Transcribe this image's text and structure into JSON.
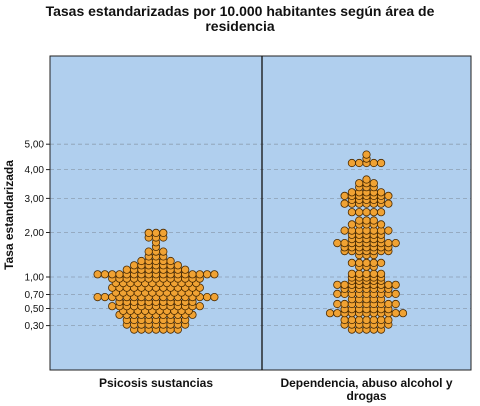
{
  "chart_data": {
    "type": "scatter",
    "subtype": "dot-plot",
    "title_lines": [
      "Tasas estandarizadas por 10.000 habitantes según área de",
      "residencia"
    ],
    "ylabel": "Tasa estandarizada",
    "y_scale": "sqrt",
    "ylim": [
      0.2,
      5.5
    ],
    "y_ticks": [
      {
        "value": 0.3,
        "label": "0,30"
      },
      {
        "value": 0.5,
        "label": "0,50"
      },
      {
        "value": 0.7,
        "label": "0,70"
      },
      {
        "value": 1.0,
        "label": "1,00"
      },
      {
        "value": 2.0,
        "label": "2,00"
      },
      {
        "value": 3.0,
        "label": "3,00"
      },
      {
        "value": 4.0,
        "label": "4,00"
      },
      {
        "value": 5.0,
        "label": "5,00"
      }
    ],
    "grid": true,
    "colors": {
      "background": "#b0cfee",
      "marker_fill": "#f0a233",
      "marker_edge": "#4a2a00",
      "grid": "#8c9fb2"
    },
    "categories": [
      {
        "label": "Psicosis sustancias",
        "bins": [
          {
            "value": 0.26,
            "count": 7
          },
          {
            "value": 0.31,
            "count": 9
          },
          {
            "value": 0.36,
            "count": 9
          },
          {
            "value": 0.42,
            "count": 11
          },
          {
            "value": 0.47,
            "count": 10
          },
          {
            "value": 0.53,
            "count": 13
          },
          {
            "value": 0.59,
            "count": 11
          },
          {
            "value": 0.66,
            "count": 17
          },
          {
            "value": 0.73,
            "count": 12
          },
          {
            "value": 0.81,
            "count": 13
          },
          {
            "value": 0.89,
            "count": 12
          },
          {
            "value": 0.97,
            "count": 13
          },
          {
            "value": 1.05,
            "count": 17
          },
          {
            "value": 1.14,
            "count": 9
          },
          {
            "value": 1.23,
            "count": 7
          },
          {
            "value": 1.32,
            "count": 5
          },
          {
            "value": 1.42,
            "count": 3
          },
          {
            "value": 1.53,
            "count": 3
          },
          {
            "value": 1.64,
            "count": 1
          },
          {
            "value": 1.75,
            "count": 1
          },
          {
            "value": 1.87,
            "count": 3
          },
          {
            "value": 1.99,
            "count": 3
          }
        ]
      },
      {
        "label": "Dependencia, abuso alcohol y drogas",
        "label_lines": [
          "Dependencia, abuso alcohol y",
          "drogas"
        ],
        "bins": [
          {
            "value": 0.26,
            "count": 5
          },
          {
            "value": 0.31,
            "count": 7
          },
          {
            "value": 0.36,
            "count": 7
          },
          {
            "value": 0.44,
            "count": 11
          },
          {
            "value": 0.49,
            "count": 7
          },
          {
            "value": 0.56,
            "count": 9
          },
          {
            "value": 0.63,
            "count": 5
          },
          {
            "value": 0.71,
            "count": 9
          },
          {
            "value": 0.79,
            "count": 7
          },
          {
            "value": 0.86,
            "count": 9
          },
          {
            "value": 0.93,
            "count": 5
          },
          {
            "value": 0.99,
            "count": 5
          },
          {
            "value": 1.06,
            "count": 5
          },
          {
            "value": 1.2,
            "count": 3
          },
          {
            "value": 1.28,
            "count": 5
          },
          {
            "value": 1.45,
            "count": 3
          },
          {
            "value": 1.54,
            "count": 7
          },
          {
            "value": 1.63,
            "count": 7
          },
          {
            "value": 1.73,
            "count": 9
          },
          {
            "value": 1.83,
            "count": 5
          },
          {
            "value": 1.94,
            "count": 5
          },
          {
            "value": 2.05,
            "count": 7
          },
          {
            "value": 2.22,
            "count": 5
          },
          {
            "value": 2.33,
            "count": 3
          },
          {
            "value": 2.57,
            "count": 5
          },
          {
            "value": 2.83,
            "count": 7
          },
          {
            "value": 2.95,
            "count": 5
          },
          {
            "value": 3.08,
            "count": 7
          },
          {
            "value": 3.2,
            "count": 5
          },
          {
            "value": 3.37,
            "count": 3
          },
          {
            "value": 3.51,
            "count": 3
          },
          {
            "value": 3.64,
            "count": 1
          },
          {
            "value": 4.25,
            "count": 5
          },
          {
            "value": 4.42,
            "count": 1
          },
          {
            "value": 4.58,
            "count": 1
          }
        ]
      }
    ]
  }
}
